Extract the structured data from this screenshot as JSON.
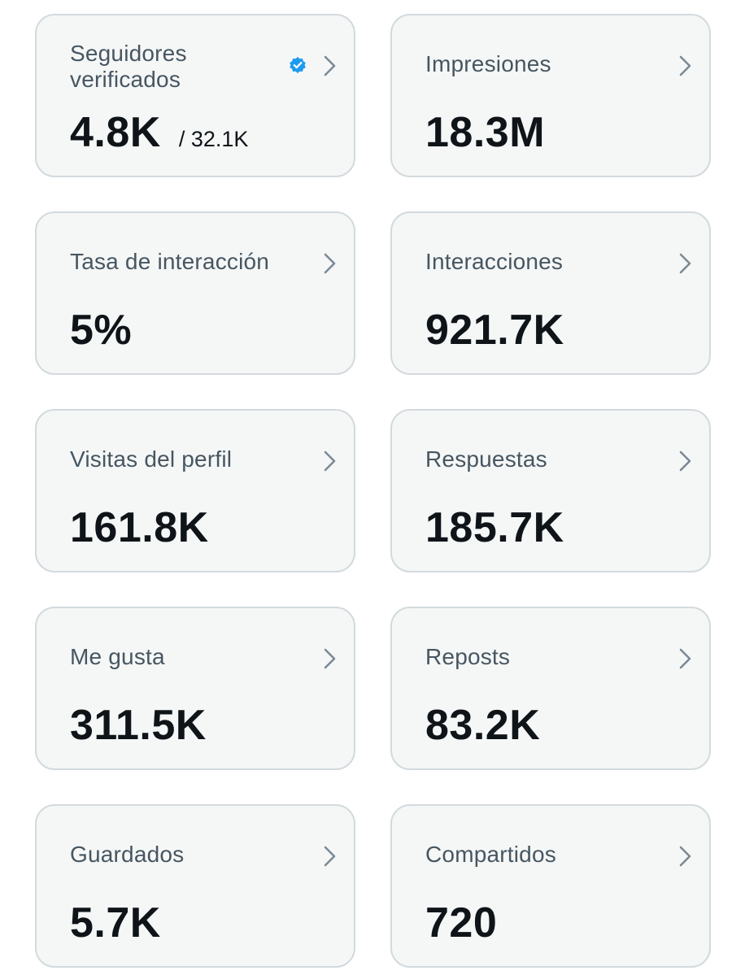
{
  "metrics": [
    {
      "label": "Seguidores verificados",
      "value": "4.8K",
      "sub_value": "/ 32.1K",
      "verified": true
    },
    {
      "label": "Impresiones",
      "value": "18.3M"
    },
    {
      "label": "Tasa de interacción",
      "value": "5%"
    },
    {
      "label": "Interacciones",
      "value": "921.7K"
    },
    {
      "label": "Visitas del perfil",
      "value": "161.8K"
    },
    {
      "label": "Respuestas",
      "value": "185.7K"
    },
    {
      "label": "Me gusta",
      "value": "311.5K"
    },
    {
      "label": "Reposts",
      "value": "83.2K"
    },
    {
      "label": "Guardados",
      "value": "5.7K"
    },
    {
      "label": "Compartidos",
      "value": "720"
    }
  ],
  "icons": {
    "chevron": "chevron-right-icon",
    "verified": "verified-badge-icon"
  },
  "colors": {
    "card_background": "#f5f7f7",
    "card_border": "#d3dade",
    "label_text": "#475661",
    "value_text": "#0f1419",
    "verified_blue": "#1d9bf0",
    "chevron": "#7b8a95"
  }
}
